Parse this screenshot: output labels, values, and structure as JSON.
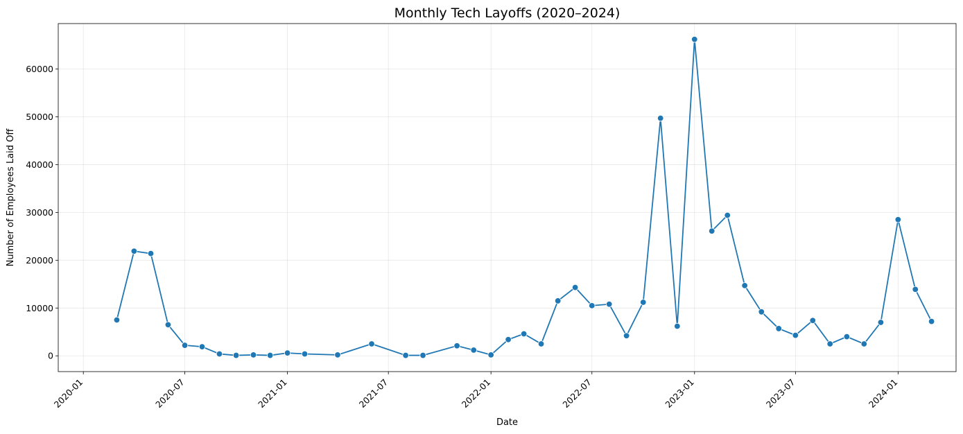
{
  "chart_data": {
    "type": "line",
    "title": "Monthly Tech Layoffs (2020–2024)",
    "xlabel": "Date",
    "ylabel": "Number of Employees Laid Off",
    "x_tick_labels": [
      "2020-01",
      "2020-07",
      "2021-01",
      "2021-07",
      "2022-01",
      "2022-07",
      "2023-01",
      "2023-07",
      "2024-01"
    ],
    "x_ticks": [
      "2020-01-01",
      "2020-07-01",
      "2021-01-01",
      "2021-07-01",
      "2022-01-01",
      "2022-07-01",
      "2023-01-01",
      "2023-07-01",
      "2024-01-01"
    ],
    "xlim": [
      "2019-11-17",
      "2024-04-14"
    ],
    "y_ticks": [
      0,
      10000,
      20000,
      30000,
      40000,
      50000,
      60000
    ],
    "ylim": [
      -3300,
      69500
    ],
    "grid": true,
    "line_color": "#1f77b4",
    "marker": "circle",
    "series": [
      {
        "x": [
          "2020-03-01",
          "2020-04-01",
          "2020-05-01",
          "2020-06-01",
          "2020-07-01",
          "2020-08-01",
          "2020-09-01",
          "2020-10-01",
          "2020-11-01",
          "2020-12-01",
          "2021-01-01",
          "2021-02-01",
          "2021-04-01",
          "2021-06-01",
          "2021-08-01",
          "2021-09-01",
          "2021-11-01",
          "2021-12-01",
          "2022-01-01",
          "2022-02-01",
          "2022-03-01",
          "2022-04-01",
          "2022-05-01",
          "2022-06-01",
          "2022-07-01",
          "2022-08-01",
          "2022-09-01",
          "2022-10-01",
          "2022-11-01",
          "2022-12-01",
          "2023-01-01",
          "2023-02-01",
          "2023-03-01",
          "2023-04-01",
          "2023-05-01",
          "2023-06-01",
          "2023-07-01",
          "2023-08-01",
          "2023-09-01",
          "2023-10-01",
          "2023-11-01",
          "2023-12-01",
          "2024-01-01",
          "2024-02-01",
          "2024-03-01"
        ],
        "y": [
          7500,
          21900,
          21400,
          6500,
          2200,
          1900,
          400,
          100,
          200,
          100,
          600,
          400,
          200,
          2500,
          100,
          100,
          2100,
          1200,
          200,
          3400,
          4600,
          2500,
          11500,
          14300,
          10500,
          10800,
          4200,
          11200,
          49700,
          6200,
          66200,
          26100,
          29400,
          14700,
          9200,
          5700,
          4300,
          7400,
          2500,
          4000,
          2500,
          7000,
          28500,
          13900,
          7200
        ]
      }
    ]
  }
}
